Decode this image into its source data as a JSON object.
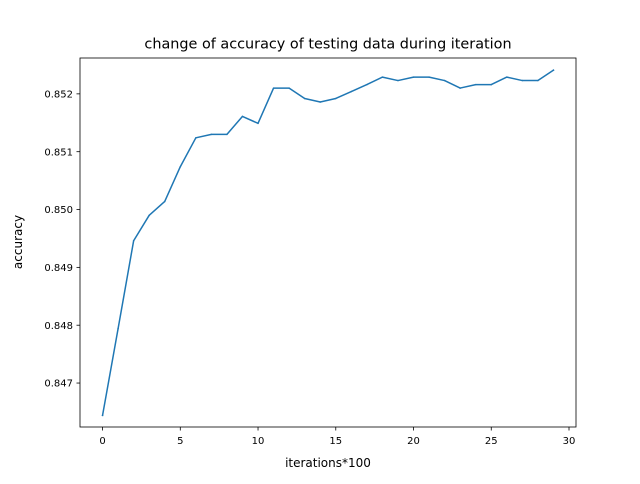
{
  "chart_data": {
    "type": "line",
    "title": "change of accuracy of testing data during iteration",
    "xlabel": "iterations*100",
    "ylabel": "accuracy",
    "xlim": [
      -1.45,
      30.45
    ],
    "ylim": [
      0.84624,
      0.85262
    ],
    "x_ticks": [
      0,
      5,
      10,
      15,
      20,
      25,
      30
    ],
    "x_tick_labels": [
      "0",
      "5",
      "10",
      "15",
      "20",
      "25",
      "30"
    ],
    "y_ticks": [
      0.847,
      0.848,
      0.849,
      0.85,
      0.851,
      0.852
    ],
    "y_tick_labels": [
      "0.847",
      "0.848",
      "0.849",
      "0.850",
      "0.851",
      "0.852"
    ],
    "grid": false,
    "legend": "none",
    "series": [
      {
        "color": "#1f77b4",
        "x": [
          0,
          1,
          2,
          3,
          4,
          5,
          6,
          7,
          8,
          9,
          10,
          11,
          12,
          13,
          14,
          15,
          16,
          17,
          18,
          19,
          20,
          21,
          22,
          23,
          24,
          25,
          26,
          27,
          28,
          29
        ],
        "y": [
          0.84644,
          0.84794,
          0.84946,
          0.8499,
          0.85014,
          0.85074,
          0.85124,
          0.8513,
          0.8513,
          0.85161,
          0.85149,
          0.8521,
          0.8521,
          0.85192,
          0.85186,
          0.85192,
          0.85204,
          0.85216,
          0.85229,
          0.85223,
          0.85229,
          0.85229,
          0.85223,
          0.8521,
          0.85216,
          0.85216,
          0.85229,
          0.85223,
          0.85223,
          0.85241
        ]
      }
    ]
  }
}
